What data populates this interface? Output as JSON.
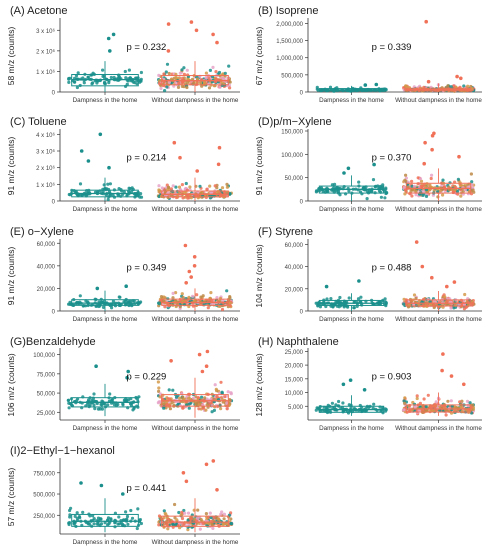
{
  "figure": {
    "group_colors": {
      "damp": "#1a8f8c",
      "nodamp": "#f07158"
    },
    "point_palette": [
      "#f07158",
      "#d49a4a",
      "#1a8f8c",
      "#e6a3c8",
      "#bd8a46"
    ]
  },
  "chart_data": [
    {
      "type": "box",
      "panel": "(A) Acetone",
      "ylabel": "58 m/z (counts)",
      "categories": [
        "Dampness in the home",
        "Without dampness in the home"
      ],
      "ylim": [
        0,
        3500000
      ],
      "yticks": [
        {
          "label": "0",
          "value": 0
        },
        {
          "label": "1 x 10⁶",
          "value": 1000000
        },
        {
          "label": "2 x 10⁶",
          "value": 2000000
        },
        {
          "label": "3 x 10⁶",
          "value": 3000000
        }
      ],
      "pvalue": "p = 0.232",
      "series": [
        {
          "category": "Dampness in the home",
          "q1": 300000,
          "median": 600000,
          "q3": 850000,
          "whisker_low": 0,
          "whisker_high": 1500000,
          "outliers": [
            2000000,
            2600000,
            2800000
          ],
          "n": 90
        },
        {
          "category": "Without dampness in the home",
          "q1": 350000,
          "median": 550000,
          "q3": 800000,
          "whisker_low": 0,
          "whisker_high": 1500000,
          "outliers": [
            2000000,
            2400000,
            2800000,
            3000000,
            3300000,
            3400000
          ],
          "n": 260
        }
      ]
    },
    {
      "type": "box",
      "panel": "(B) Isoprene",
      "ylabel": "67 m/z (counts)",
      "categories": [
        "Dampness in the home",
        "Without dampness in the home"
      ],
      "ylim": [
        0,
        2100000
      ],
      "yticks": [
        {
          "label": "0",
          "value": 0
        },
        {
          "label": "500,000",
          "value": 500000
        },
        {
          "label": "1,000,000",
          "value": 1000000
        },
        {
          "label": "1,500,000",
          "value": 1500000
        },
        {
          "label": "2,000,000",
          "value": 2000000
        }
      ],
      "pvalue": "p = 0.339",
      "series": [
        {
          "category": "Dampness in the home",
          "q1": 30000,
          "median": 60000,
          "q3": 100000,
          "whisker_low": 0,
          "whisker_high": 180000,
          "outliers": [
            200000,
            220000
          ],
          "n": 90
        },
        {
          "category": "Without dampness in the home",
          "q1": 35000,
          "median": 70000,
          "q3": 110000,
          "whisker_low": 0,
          "whisker_high": 250000,
          "outliers": [
            300000,
            400000,
            450000,
            2050000
          ],
          "n": 260
        }
      ]
    },
    {
      "type": "box",
      "panel": "(C) Toluene",
      "ylabel": "91 m/z (counts)",
      "categories": [
        "Dampness in the home",
        "Without dampness in the home"
      ],
      "ylim": [
        0,
        4200000
      ],
      "yticks": [
        {
          "label": "0",
          "value": 0
        },
        {
          "label": "1 x 10⁶",
          "value": 1000000
        },
        {
          "label": "2 x 10⁶",
          "value": 2000000
        },
        {
          "label": "3 x 10⁶",
          "value": 3000000
        },
        {
          "label": "4 x 10⁶",
          "value": 4000000
        }
      ],
      "pvalue": "p = 0.214",
      "series": [
        {
          "category": "Dampness in the home",
          "q1": 250000,
          "median": 450000,
          "q3": 650000,
          "whisker_low": 0,
          "whisker_high": 1400000,
          "outliers": [
            2000000,
            2400000,
            3000000,
            4000000
          ],
          "n": 90
        },
        {
          "category": "Without dampness in the home",
          "q1": 250000,
          "median": 400000,
          "q3": 600000,
          "whisker_low": 0,
          "whisker_high": 1400000,
          "outliers": [
            1800000,
            2200000,
            2600000,
            3200000,
            3500000
          ],
          "n": 260
        }
      ]
    },
    {
      "type": "box",
      "panel": "(D)p/m−Xylene",
      "ylabel": "91 m/z (counts)",
      "categories": [
        "Dampness in the home",
        "Without dampness in the home"
      ],
      "ylim": [
        0,
        150000
      ],
      "yticks": [
        {
          "label": "0",
          "value": 0
        },
        {
          "label": "50,000",
          "value": 50000
        },
        {
          "label": "100,000",
          "value": 100000
        },
        {
          "label": "150,000",
          "value": 150000
        }
      ],
      "pvalue": "p = 0.370",
      "series": [
        {
          "category": "Dampness in the home",
          "q1": 17000,
          "median": 25000,
          "q3": 32000,
          "whisker_low": 0,
          "whisker_high": 55000,
          "outliers": [
            60000,
            70000,
            78000
          ],
          "n": 90
        },
        {
          "category": "Without dampness in the home",
          "q1": 17000,
          "median": 27000,
          "q3": 38000,
          "whisker_low": 0,
          "whisker_high": 70000,
          "outliers": [
            80000,
            95000,
            110000,
            125000,
            140000,
            145000
          ],
          "n": 260
        }
      ]
    },
    {
      "type": "box",
      "panel": "(E) o−Xylene",
      "ylabel": "91 m/z (counts)",
      "categories": [
        "Dampness in the home",
        "Without dampness in the home"
      ],
      "ylim": [
        0,
        62000
      ],
      "yticks": [
        {
          "label": "0",
          "value": 0
        },
        {
          "label": "20,000",
          "value": 20000
        },
        {
          "label": "40,000",
          "value": 40000
        },
        {
          "label": "60,000",
          "value": 60000
        }
      ],
      "pvalue": "p = 0.349",
      "series": [
        {
          "category": "Dampness in the home",
          "q1": 5000,
          "median": 7000,
          "q3": 10000,
          "whisker_low": 0,
          "whisker_high": 18000,
          "outliers": [
            20000,
            22000
          ],
          "n": 90
        },
        {
          "category": "Without dampness in the home",
          "q1": 5000,
          "median": 7500,
          "q3": 10500,
          "whisker_low": 0,
          "whisker_high": 20000,
          "outliers": [
            25000,
            30000,
            35000,
            40000,
            48000,
            58000
          ],
          "n": 260
        }
      ]
    },
    {
      "type": "box",
      "panel": "(F) Styrene",
      "ylabel": "104 m/z (counts)",
      "categories": [
        "Dampness in the home",
        "Without dampness in the home"
      ],
      "ylim": [
        0,
        63000
      ],
      "yticks": [
        {
          "label": "0",
          "value": 0
        },
        {
          "label": "20,000",
          "value": 20000
        },
        {
          "label": "40,000",
          "value": 40000
        },
        {
          "label": "60,000",
          "value": 60000
        }
      ],
      "pvalue": "p = 0.488",
      "series": [
        {
          "category": "Dampness in the home",
          "q1": 5000,
          "median": 7000,
          "q3": 9500,
          "whisker_low": 0,
          "whisker_high": 16000,
          "outliers": [
            22000,
            27000
          ],
          "n": 90
        },
        {
          "category": "Without dampness in the home",
          "q1": 4500,
          "median": 7000,
          "q3": 10000,
          "whisker_low": 0,
          "whisker_high": 18000,
          "outliers": [
            22000,
            26000,
            30000,
            40000,
            62000
          ],
          "n": 260
        }
      ]
    },
    {
      "type": "box",
      "panel": "(G)Benzaldehyde",
      "ylabel": "106 m/z (counts)",
      "categories": [
        "Dampness in the home",
        "Without dampness in the home"
      ],
      "ylim": [
        15000,
        106000
      ],
      "yticks": [
        {
          "label": "25,000",
          "value": 25000
        },
        {
          "label": "50,000",
          "value": 50000
        },
        {
          "label": "75,000",
          "value": 75000
        },
        {
          "label": "100,000",
          "value": 100000
        }
      ],
      "pvalue": "p = 0.229",
      "series": [
        {
          "category": "Dampness in the home",
          "q1": 32000,
          "median": 38000,
          "q3": 44000,
          "whisker_low": 20000,
          "whisker_high": 62000,
          "outliers": [
            70000,
            78000,
            85000
          ],
          "n": 90
        },
        {
          "category": "Without dampness in the home",
          "q1": 33000,
          "median": 40000,
          "q3": 48000,
          "whisker_low": 18000,
          "whisker_high": 70000,
          "outliers": [
            78000,
            85000,
            92000,
            100000,
            104000
          ],
          "n": 260
        }
      ]
    },
    {
      "type": "box",
      "panel": "(H) Naphthalene",
      "ylabel": "128 m/z (counts)",
      "categories": [
        "Dampness in the home",
        "Without dampness in the home"
      ],
      "ylim": [
        0,
        25500
      ],
      "yticks": [
        {
          "label": "5,000",
          "value": 5000
        },
        {
          "label": "10,000",
          "value": 10000
        },
        {
          "label": "15,000",
          "value": 15000
        },
        {
          "label": "20,000",
          "value": 20000
        },
        {
          "label": "25,000",
          "value": 25000
        }
      ],
      "pvalue": "p = 0.903",
      "series": [
        {
          "category": "Dampness in the home",
          "q1": 2800,
          "median": 3800,
          "q3": 5000,
          "whisker_low": 1500,
          "whisker_high": 9000,
          "outliers": [
            11000,
            13000,
            14500
          ],
          "n": 90
        },
        {
          "category": "Without dampness in the home",
          "q1": 2900,
          "median": 4000,
          "q3": 5500,
          "whisker_low": 1500,
          "whisker_high": 10000,
          "outliers": [
            13000,
            16000,
            18000,
            24000
          ],
          "n": 260
        }
      ]
    },
    {
      "type": "box",
      "panel": "(I)2−Ethyl−1−hexanol",
      "ylabel": "57 m/z (counts)",
      "categories": [
        "Dampness in the home",
        "Without dampness in the home"
      ],
      "ylim": [
        30000,
        900000
      ],
      "yticks": [
        {
          "label": "250,000",
          "value": 250000
        },
        {
          "label": "500,000",
          "value": 500000
        },
        {
          "label": "750,000",
          "value": 750000
        }
      ],
      "pvalue": "p = 0.441",
      "series": [
        {
          "category": "Dampness in the home",
          "q1": 120000,
          "median": 180000,
          "q3": 260000,
          "whisker_low": 50000,
          "whisker_high": 450000,
          "outliers": [
            500000,
            600000,
            630000
          ],
          "n": 90
        },
        {
          "category": "Without dampness in the home",
          "q1": 120000,
          "median": 170000,
          "q3": 240000,
          "whisker_low": 50000,
          "whisker_high": 450000,
          "outliers": [
            550000,
            650000,
            750000,
            850000,
            890000
          ],
          "n": 260
        }
      ]
    }
  ]
}
